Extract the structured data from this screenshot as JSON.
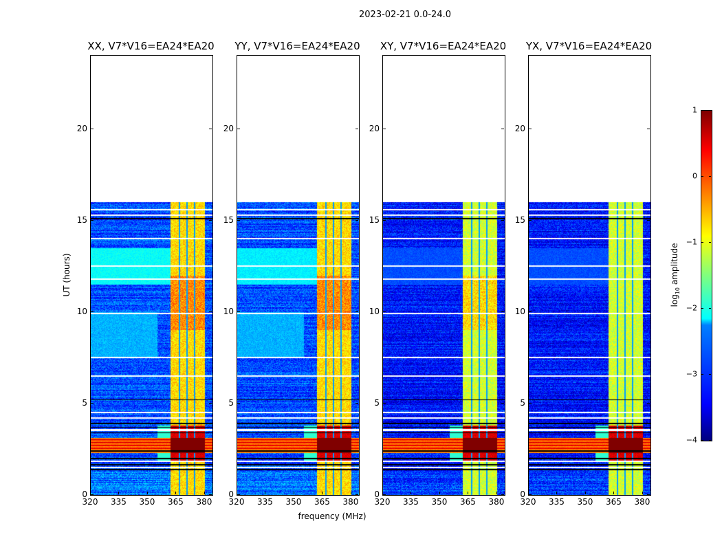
{
  "chart_data": {
    "type": "heatmap",
    "title": "2023-02-21 0.0-24.0",
    "xlabel": "frequency (MHz)",
    "ylabel": "UT (hours)",
    "xlim": [
      320,
      384
    ],
    "ylim": [
      0,
      24
    ],
    "xticks": [
      "320",
      "335",
      "350",
      "365",
      "380"
    ],
    "xtick_values": [
      320,
      335,
      350,
      365,
      380
    ],
    "yticks": [
      "0",
      "5",
      "10",
      "15",
      "20"
    ],
    "ytick_values": [
      0,
      5,
      10,
      15,
      20
    ],
    "colormap": "jet",
    "colorbar": {
      "label_main": "log",
      "label_sub": "10",
      "label_rest": " amplitude",
      "range": [
        -4,
        1
      ],
      "ticks": [
        "1",
        "0",
        "−1",
        "−2",
        "−3",
        "−4"
      ],
      "tick_values": [
        1,
        0,
        -1,
        -2,
        -3,
        -4
      ]
    },
    "data_end_hours": 16.0,
    "rfi_band_MHz": [
      362,
      380
    ],
    "rfi_gaps_MHz": [
      366.5,
      370.5,
      374.5
    ],
    "strong_rfi_hours": [
      2.3,
      3.1
    ],
    "flagged_white_hours": [
      1.5,
      1.85,
      3.55,
      4.2,
      4.5,
      6.5,
      7.5,
      9.9,
      11.8,
      12.5,
      14.0,
      15.3,
      15.6
    ],
    "flagged_black_hours": [
      1.4,
      1.65,
      2.0,
      2.4,
      3.4,
      3.7,
      3.9,
      5.2,
      15.1
    ],
    "panels": [
      {
        "title": "XX, V7*V16=EA24*EA20",
        "background_log_amp": -3.0,
        "rfi_log_amp": -0.7,
        "broad_hours": [
          11.5,
          13.5
        ],
        "broad_log_amp": -2.1
      },
      {
        "title": "YY, V7*V16=EA24*EA20",
        "background_log_amp": -3.0,
        "rfi_log_amp": -0.7,
        "broad_hours": [
          11.5,
          13.5
        ],
        "broad_log_amp": -2.2
      },
      {
        "title": "XY, V7*V16=EA24*EA20",
        "background_log_amp": -3.3,
        "rfi_log_amp": -1.1,
        "broad_hours": [
          11.5,
          13.5
        ],
        "broad_log_amp": -3.0
      },
      {
        "title": "YX, V7*V16=EA24*EA20",
        "background_log_amp": -3.3,
        "rfi_log_amp": -1.1,
        "broad_hours": [
          11.5,
          13.5
        ],
        "broad_log_amp": -3.0
      }
    ]
  }
}
